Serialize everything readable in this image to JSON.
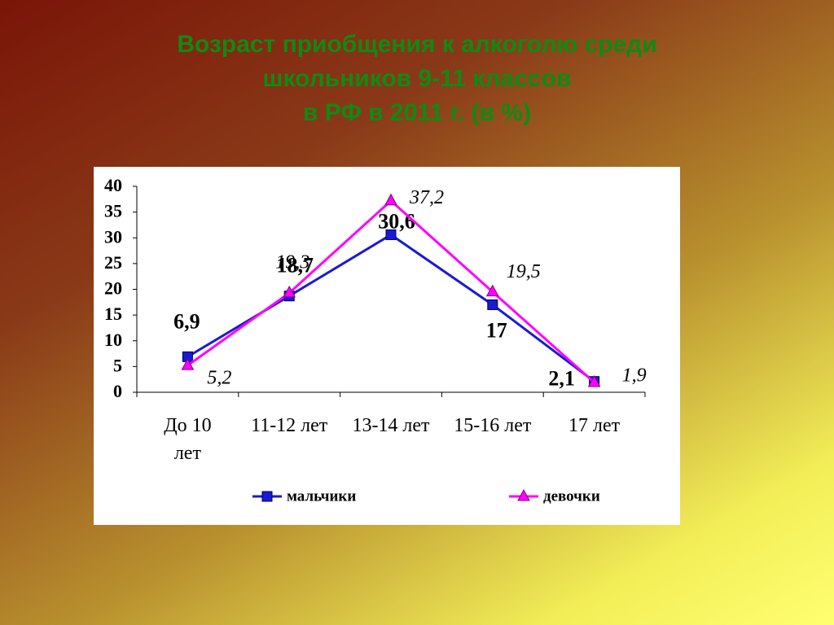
{
  "chart_data": {
    "type": "line",
    "title": [
      "Возраст приобщения к алкоголю среди",
      "школьников 9-11 классов",
      "в РФ в 2011 г. (в %)"
    ],
    "categories": [
      "До 10 лет",
      "11-12 лет",
      "13-14 лет",
      "15-16 лет",
      "17 лет"
    ],
    "series": [
      {
        "name": "мальчики",
        "color": "#1a1ad6",
        "marker": "square",
        "values": [
          6.9,
          18.7,
          30.6,
          17,
          2.1
        ],
        "value_labels": [
          "6,9",
          "18,7",
          "30,6",
          "17",
          "2,1"
        ]
      },
      {
        "name": "девочки",
        "color": "#ff00ff",
        "marker": "triangle",
        "values": [
          5.2,
          19.3,
          37.2,
          19.5,
          1.9
        ],
        "value_labels": [
          "5,2",
          "19,3",
          "37,2",
          "19,5",
          "1,9"
        ]
      }
    ],
    "ylim": [
      0,
      40
    ],
    "yticks": [
      0,
      5,
      10,
      15,
      20,
      25,
      30,
      35,
      40
    ],
    "grid": false,
    "legend": "bottom"
  }
}
